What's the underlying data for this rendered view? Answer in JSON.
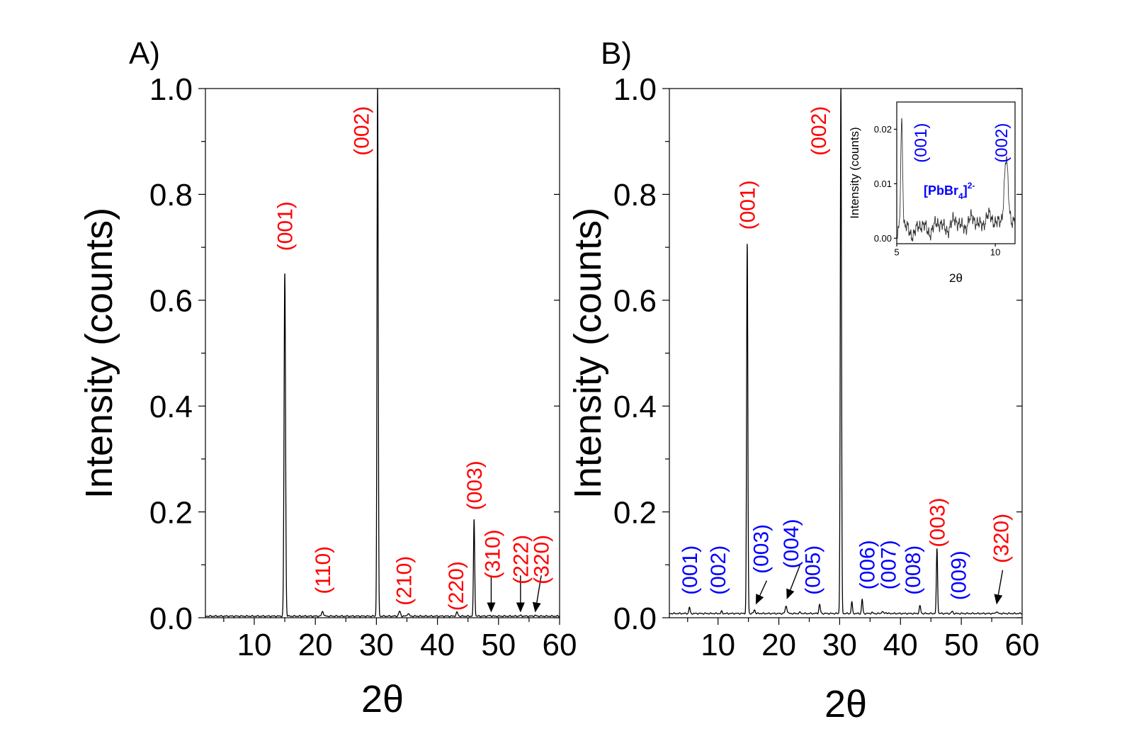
{
  "chart_data": [
    {
      "type": "line",
      "panel_label": "A)",
      "xlabel": "2θ",
      "ylabel": "Intensity (counts)",
      "xlim": [
        2,
        60
      ],
      "ylim": [
        0,
        1.0
      ],
      "x_ticks": [
        10,
        20,
        30,
        40,
        50,
        60
      ],
      "x_tick_labels": [
        "10",
        "20",
        "30",
        "40",
        "50",
        "60"
      ],
      "y_ticks": [
        0,
        0.2,
        0.4,
        0.6,
        0.8,
        1.0
      ],
      "y_tick_labels": [
        "0.0",
        "0.2",
        "0.4",
        "0.6",
        "0.8",
        "1.0"
      ],
      "baseline": 0.003,
      "peaks": [
        {
          "x": 15.0,
          "y": 0.65,
          "w": 0.12
        },
        {
          "x": 21.2,
          "y": 0.012,
          "w": 0.15
        },
        {
          "x": 30.2,
          "y": 1.0,
          "w": 0.1
        },
        {
          "x": 33.8,
          "y": 0.012,
          "w": 0.15
        },
        {
          "x": 35.2,
          "y": 0.008,
          "w": 0.15
        },
        {
          "x": 43.2,
          "y": 0.01,
          "w": 0.15
        },
        {
          "x": 46.0,
          "y": 0.185,
          "w": 0.1
        },
        {
          "x": 48.6,
          "y": 0.004,
          "w": 0.2
        },
        {
          "x": 53.6,
          "y": 0.004,
          "w": 0.2
        },
        {
          "x": 56.0,
          "y": 0.004,
          "w": 0.2
        }
      ],
      "annotations": [
        {
          "text": "(001)",
          "x": 15.0,
          "y": 0.74,
          "color": "#ff0000"
        },
        {
          "text": "(110)",
          "x": 21.2,
          "y": 0.09,
          "color": "#ff0000"
        },
        {
          "text": "(002)",
          "x": 27.5,
          "y": 0.92,
          "color": "#ff0000"
        },
        {
          "text": "(210)",
          "x": 34.5,
          "y": 0.07,
          "color": "#ff0000"
        },
        {
          "text": "(220)",
          "x": 43.0,
          "y": 0.06,
          "color": "#ff0000"
        },
        {
          "text": "(003)",
          "x": 46.0,
          "y": 0.25,
          "color": "#ff0000"
        },
        {
          "text": "(310)",
          "x": 49.0,
          "y": 0.12,
          "color": "#ff0000"
        },
        {
          "text": "(222)",
          "x": 53.6,
          "y": 0.11,
          "color": "#ff0000"
        },
        {
          "text": "(320)",
          "x": 57.0,
          "y": 0.11,
          "color": "#ff0000"
        }
      ],
      "arrows": [
        {
          "x1": 48.8,
          "y1": 0.08,
          "x2": 48.8,
          "y2": 0.01
        },
        {
          "x1": 53.6,
          "y1": 0.08,
          "x2": 53.6,
          "y2": 0.01
        },
        {
          "x1": 57.0,
          "y1": 0.08,
          "x2": 56.0,
          "y2": 0.01
        }
      ]
    },
    {
      "type": "line",
      "panel_label": "B)",
      "xlabel": "2θ",
      "ylabel": "Intensity (counts)",
      "xlim": [
        2,
        60
      ],
      "ylim": [
        0,
        1.0
      ],
      "x_ticks": [
        10,
        20,
        30,
        40,
        50,
        60
      ],
      "x_tick_labels": [
        "10",
        "20",
        "30",
        "40",
        "50",
        "60"
      ],
      "y_ticks": [
        0,
        0.2,
        0.4,
        0.6,
        0.8,
        1.0
      ],
      "y_tick_labels": [
        "0.0",
        "0.2",
        "0.4",
        "0.6",
        "0.8",
        "1.0"
      ],
      "baseline": 0.008,
      "peaks": [
        {
          "x": 5.3,
          "y": 0.02,
          "w": 0.1
        },
        {
          "x": 10.6,
          "y": 0.012,
          "w": 0.1
        },
        {
          "x": 14.8,
          "y": 0.705,
          "w": 0.1
        },
        {
          "x": 16.0,
          "y": 0.015,
          "w": 0.12
        },
        {
          "x": 21.2,
          "y": 0.022,
          "w": 0.15
        },
        {
          "x": 23.5,
          "y": 0.01,
          "w": 0.15
        },
        {
          "x": 26.7,
          "y": 0.025,
          "w": 0.12
        },
        {
          "x": 30.2,
          "y": 1.0,
          "w": 0.1
        },
        {
          "x": 32.0,
          "y": 0.03,
          "w": 0.1
        },
        {
          "x": 33.7,
          "y": 0.035,
          "w": 0.1
        },
        {
          "x": 35.3,
          "y": 0.01,
          "w": 0.12
        },
        {
          "x": 37.0,
          "y": 0.012,
          "w": 0.12
        },
        {
          "x": 37.6,
          "y": 0.01,
          "w": 0.12
        },
        {
          "x": 43.2,
          "y": 0.022,
          "w": 0.12
        },
        {
          "x": 46.0,
          "y": 0.13,
          "w": 0.1
        },
        {
          "x": 48.5,
          "y": 0.012,
          "w": 0.12
        },
        {
          "x": 55.8,
          "y": 0.012,
          "w": 0.12
        }
      ],
      "annotations": [
        {
          "text": "(001)",
          "x": 5.3,
          "y": 0.09,
          "color": "#0000ff"
        },
        {
          "text": "(002)",
          "x": 10.0,
          "y": 0.09,
          "color": "#0000ff"
        },
        {
          "text": "(001)",
          "x": 14.8,
          "y": 0.78,
          "color": "#ff0000"
        },
        {
          "text": "(003)",
          "x": 17.0,
          "y": 0.13,
          "color": "#0000ff"
        },
        {
          "text": "(004)",
          "x": 22.0,
          "y": 0.14,
          "color": "#0000ff"
        },
        {
          "text": "(005)",
          "x": 25.5,
          "y": 0.09,
          "color": "#0000ff"
        },
        {
          "text": "(002)",
          "x": 26.5,
          "y": 0.92,
          "color": "#ff0000"
        },
        {
          "text": "(006)",
          "x": 34.5,
          "y": 0.1,
          "color": "#0000ff"
        },
        {
          "text": "(007)",
          "x": 38.0,
          "y": 0.1,
          "color": "#0000ff"
        },
        {
          "text": "(008)",
          "x": 42.0,
          "y": 0.09,
          "color": "#0000ff"
        },
        {
          "text": "(003)",
          "x": 46.0,
          "y": 0.18,
          "color": "#ff0000"
        },
        {
          "text": "(009)",
          "x": 49.5,
          "y": 0.08,
          "color": "#0000ff"
        },
        {
          "text": "(320)",
          "x": 56.5,
          "y": 0.15,
          "color": "#ff0000"
        }
      ],
      "arrows": [
        {
          "x1": 18.0,
          "y1": 0.07,
          "x2": 16.2,
          "y2": 0.025
        },
        {
          "x1": 23.5,
          "y1": 0.1,
          "x2": 21.3,
          "y2": 0.035
        },
        {
          "x1": 56.8,
          "y1": 0.09,
          "x2": 55.8,
          "y2": 0.025
        }
      ],
      "inset": {
        "xlabel": "2θ",
        "ylabel": "Intensity (counts)",
        "xlim": [
          5,
          11
        ],
        "ylim": [
          -0.001,
          0.025
        ],
        "x_ticks": [
          5,
          10
        ],
        "x_tick_labels": [
          "5",
          "10"
        ],
        "y_ticks": [
          0.0,
          0.01,
          0.02
        ],
        "y_tick_labels": [
          "0.00",
          "0.01",
          "0.02"
        ],
        "baseline": 0.0012,
        "trend": 0.00045,
        "peaks": [
          {
            "x": 5.25,
            "y": 0.021,
            "w": 0.05
          },
          {
            "x": 10.55,
            "y": 0.011,
            "w": 0.09
          }
        ],
        "annotations": [
          {
            "text": "(001)",
            "x": 6.2,
            "y": 0.0175,
            "color": "#0000ff"
          },
          {
            "text": "(002)",
            "x": 10.3,
            "y": 0.0175,
            "color": "#0000ff"
          }
        ],
        "label_text": "[PbBr",
        "label_sub": "4",
        "label_end": "]",
        "label_sup": "2-",
        "label_color": "#0000ff"
      }
    }
  ]
}
